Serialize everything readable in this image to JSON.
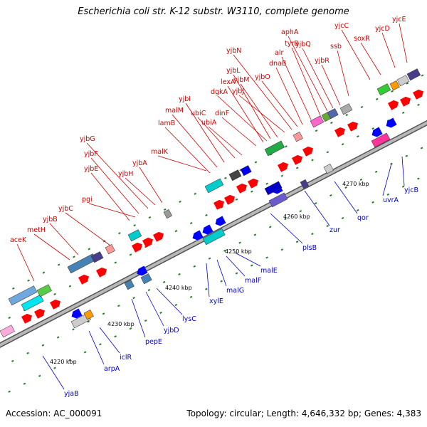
{
  "title": "Escherichia coli str. K-12 substr. W3110, complete genome",
  "footer": {
    "accession": "Accession: AC_000091",
    "summary": "Topology: circular; Length: 4,646,332 bp; Genes: 4,383"
  },
  "colors": {
    "top_label": "#d00000",
    "bottom_label": "#0000cc",
    "forward_gene": "#ff0000",
    "reverse_gene": "#0000ff",
    "tick": "#2a7a2a",
    "backbone": "#8a8a8a"
  },
  "scale_labels": [
    "4220 kbp",
    "4230 kbp",
    "4240 kbp",
    "4250 kbp",
    "4260 kbp",
    "4270 kbp"
  ],
  "top_genes": [
    "aceK",
    "metH",
    "yjbB",
    "yjbC",
    "pgi",
    "yjbE",
    "yjbF",
    "yjbG",
    "yjbH",
    "yjbA",
    "malK",
    "lamB",
    "malM",
    "yjbI",
    "ubiC",
    "ubiA",
    "dinF",
    "lexA",
    "dgkA",
    "yjbL",
    "yjbM",
    "yjbJ",
    "yjbN",
    "yjbO",
    "dnaB",
    "alr",
    "tyrB",
    "aphA",
    "yjbQ",
    "yjbR",
    "ssb",
    "yjcC",
    "soxR",
    "yjcD",
    "yjcE"
  ],
  "bottom_genes": [
    "yjaB",
    "arpA",
    "iclR",
    "pepE",
    "yjbD",
    "lysC",
    "xylE",
    "malG",
    "malF",
    "malE",
    "plsB",
    "zur",
    "qor",
    "uvrA",
    "yjcB"
  ]
}
